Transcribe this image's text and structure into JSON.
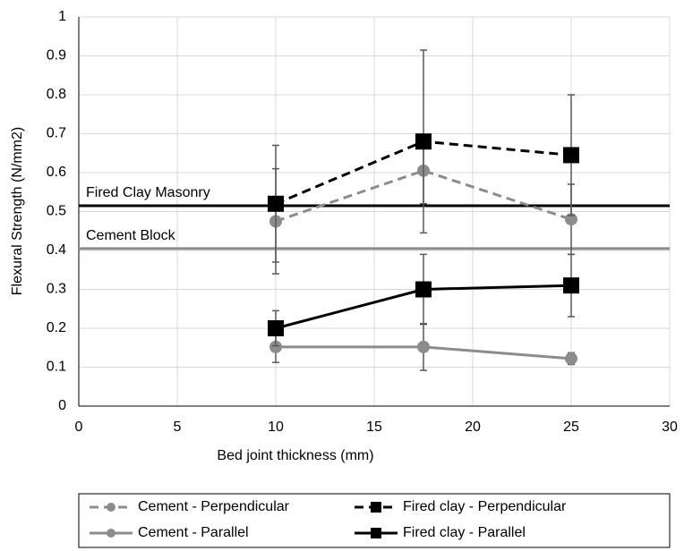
{
  "chart_data": {
    "type": "line",
    "x_label": "Bed joint thickness (mm)",
    "y_label": "Flexural Strength (N/mm2)",
    "x": [
      10,
      17.5,
      25
    ],
    "xlim": [
      0,
      30
    ],
    "xticks": [
      0,
      5,
      10,
      15,
      20,
      25,
      30
    ],
    "ylim": [
      0,
      1
    ],
    "yticks": [
      0,
      0.1,
      0.2,
      0.3,
      0.4,
      0.5,
      0.6,
      0.7,
      0.8,
      0.9,
      1
    ],
    "grid": true,
    "legend": "bottom",
    "series": [
      {
        "name": "Cement - Perpendicular",
        "color": "#8c8c8c",
        "dashed": true,
        "marker": "circle",
        "values": [
          0.475,
          0.605,
          0.48
        ],
        "errors": [
          0.135,
          0.085,
          0.09
        ]
      },
      {
        "name": "Fired clay - Perpendicular",
        "color": "#000000",
        "dashed": true,
        "marker": "square",
        "values": [
          0.52,
          0.68,
          0.645
        ],
        "errors": [
          0.15,
          0.235,
          0.155
        ]
      },
      {
        "name": "Cement - Parallel",
        "color": "#8c8c8c",
        "dashed": false,
        "marker": "circle",
        "values": [
          0.152,
          0.152,
          0.122
        ],
        "errors": [
          0.04,
          0.06,
          0.015
        ]
      },
      {
        "name": "Fired clay - Parallel",
        "color": "#000000",
        "dashed": false,
        "marker": "square",
        "values": [
          0.2,
          0.3,
          0.31
        ],
        "errors": [
          0.045,
          0.09,
          0.08
        ]
      }
    ],
    "reference_lines": [
      {
        "label": "Fired Clay Masonry",
        "value": 0.515,
        "color": "#000000"
      },
      {
        "label": "Cement Block",
        "value": 0.405,
        "color": "#8c8c8c"
      }
    ]
  }
}
